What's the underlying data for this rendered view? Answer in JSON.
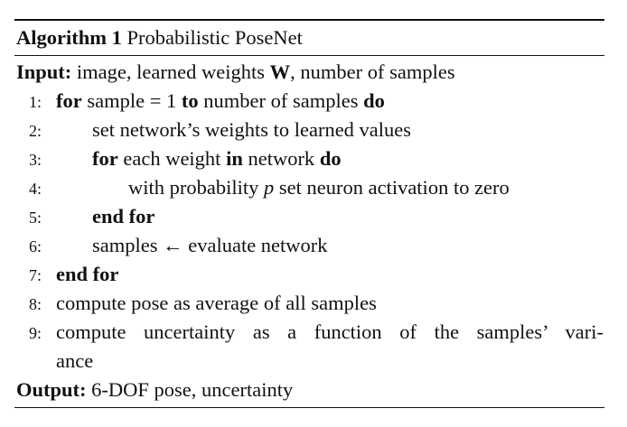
{
  "algorithm": {
    "label": "Algorithm 1",
    "title": "Probabilistic PoseNet"
  },
  "input": {
    "keyword": "Input:",
    "text_before": "image, learned weights",
    "weights_symbol": "W",
    "text_after": ", number of samples"
  },
  "steps": [
    {
      "number": "1:",
      "kw1": "for",
      "t1": "sample = 1",
      "kw2": "to",
      "t2": "number of samples",
      "kw3": "do"
    },
    {
      "number": "2:",
      "text": "set network’s weights to learned values"
    },
    {
      "number": "3:",
      "kw1": "for",
      "t1": "each weight",
      "kw2": "in",
      "t2": "network",
      "kw3": "do"
    },
    {
      "number": "4:",
      "t1": "with probability",
      "var": "p",
      "t2": "set neuron activation to zero"
    },
    {
      "number": "5:",
      "kw": "end for"
    },
    {
      "number": "6:",
      "text": "samples ← evaluate network"
    },
    {
      "number": "7:",
      "kw": "end for"
    },
    {
      "number": "8:",
      "text": "compute pose as average of all samples"
    },
    {
      "number": "9:",
      "line1": "compute uncertainty as a function of the samples’ vari-",
      "line2": "ance"
    }
  ],
  "output": {
    "keyword": "Output:",
    "text": "6-DOF pose, uncertainty"
  }
}
